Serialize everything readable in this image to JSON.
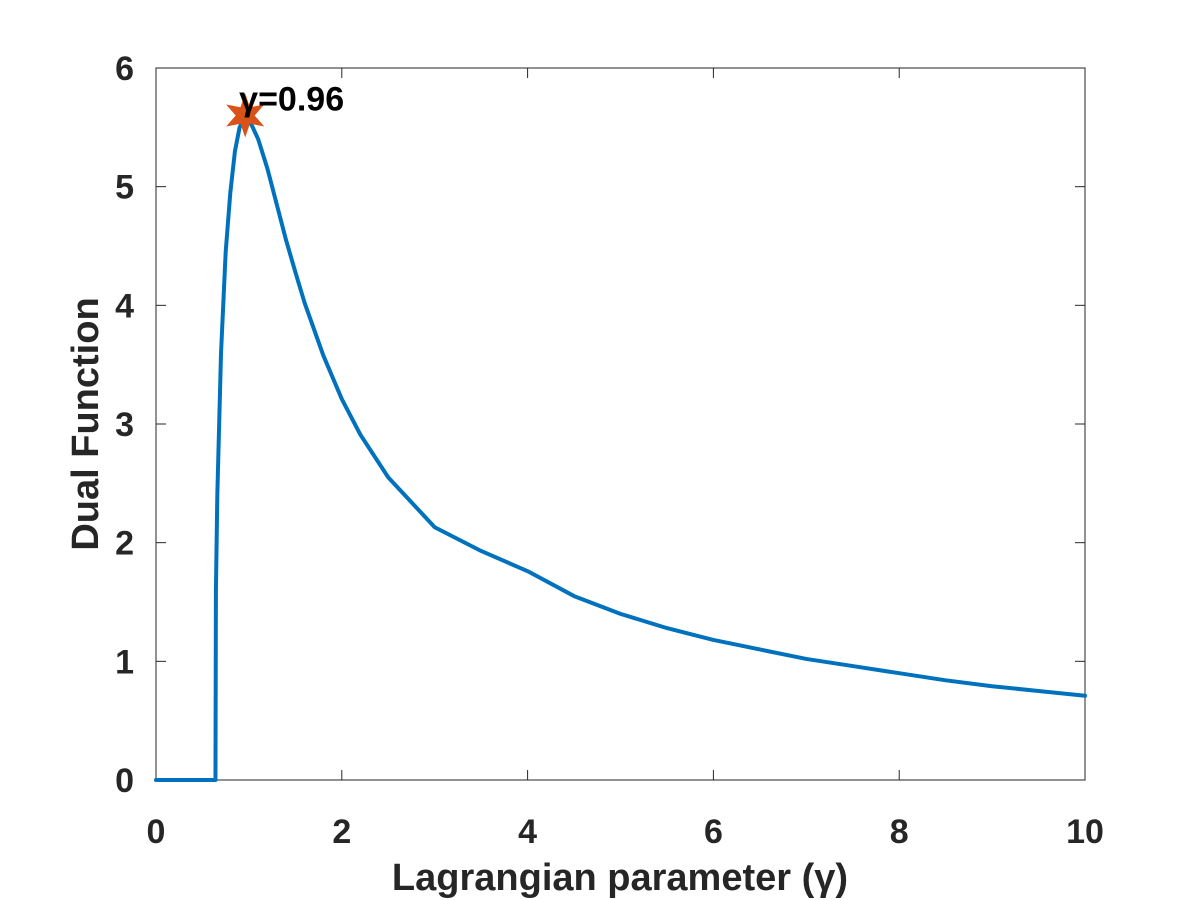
{
  "chart_data": {
    "type": "line",
    "xlabel": "Lagrangian parameter (γ)",
    "ylabel": "Dual Function",
    "xlim": [
      0,
      10
    ],
    "ylim": [
      0,
      6
    ],
    "xticks": [
      "0",
      "2",
      "4",
      "6",
      "8",
      "10"
    ],
    "yticks": [
      "0",
      "1",
      "2",
      "3",
      "4",
      "5",
      "6"
    ],
    "grid": false,
    "series": [
      {
        "color": "#0072bd",
        "x": [
          0,
          0.2,
          0.4,
          0.6,
          0.64,
          0.645,
          0.66,
          0.7,
          0.75,
          0.8,
          0.85,
          0.9,
          0.96,
          1.0,
          1.1,
          1.2,
          1.3,
          1.4,
          1.5,
          1.6,
          1.8,
          2.0,
          2.2,
          2.5,
          3.0,
          3.5,
          4.0,
          4.5,
          5.0,
          5.5,
          6.0,
          6.5,
          7.0,
          7.5,
          8.0,
          8.5,
          9.0,
          9.5,
          10.0
        ],
        "y": [
          0,
          0,
          0,
          0,
          0,
          1.6,
          2.4,
          3.6,
          4.45,
          4.95,
          5.3,
          5.5,
          5.6,
          5.57,
          5.4,
          5.15,
          4.85,
          4.55,
          4.28,
          4.02,
          3.58,
          3.21,
          2.91,
          2.55,
          2.13,
          1.93,
          1.76,
          1.55,
          1.4,
          1.28,
          1.18,
          1.1,
          1.02,
          0.96,
          0.9,
          0.84,
          0.79,
          0.75,
          0.71
        ]
      }
    ],
    "marker": {
      "x": 0.96,
      "y": 5.6,
      "color": "#d95319",
      "shape": "hexagram"
    },
    "annotation": "γ=0.96"
  }
}
